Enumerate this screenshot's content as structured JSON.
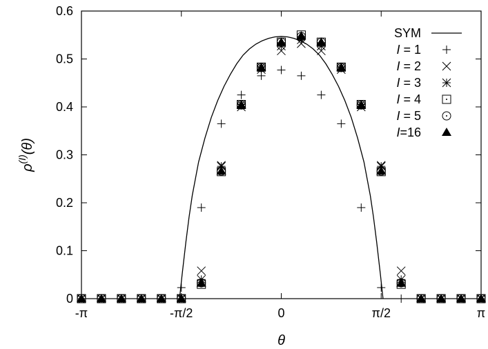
{
  "chart_data": {
    "type": "scatter",
    "title": "",
    "xlabel": "θ",
    "ylabel": {
      "base": "ρ",
      "sup": "(I)",
      "arg": "(θ)"
    },
    "xlim": [
      -3.14159,
      3.14159
    ],
    "ylim": [
      0,
      0.6
    ],
    "x_ticks": [
      {
        "value": -3.14159,
        "label": "-π"
      },
      {
        "value": -1.5708,
        "label": "-π/2"
      },
      {
        "value": 0,
        "label": "0"
      },
      {
        "value": 1.5708,
        "label": "π/2"
      },
      {
        "value": 3.14159,
        "label": "π"
      }
    ],
    "y_ticks": [
      {
        "value": 0,
        "label": "0"
      },
      {
        "value": 0.1,
        "label": "0.1"
      },
      {
        "value": 0.2,
        "label": "0.2"
      },
      {
        "value": 0.3,
        "label": "0.3"
      },
      {
        "value": 0.4,
        "label": "0.4"
      },
      {
        "value": 0.5,
        "label": "0.5"
      },
      {
        "value": 0.6,
        "label": "0.6"
      }
    ],
    "grid": false,
    "legend_position": "top-right",
    "x": [
      -3.1416,
      -2.8274,
      -2.5133,
      -2.1991,
      -1.885,
      -1.5708,
      -1.2566,
      -0.9425,
      -0.6283,
      -0.3142,
      0,
      0.3142,
      0.6283,
      0.9425,
      1.2566,
      1.5708,
      1.885,
      2.1991,
      2.5133,
      2.8274,
      3.1416
    ],
    "curve": {
      "name": "SYM",
      "style": "line",
      "x": [
        -1.6,
        -1.59,
        -1.58,
        -1.56,
        -1.54,
        -1.5,
        -1.45,
        -1.4,
        -1.3,
        -1.2,
        -1.1,
        -1.0,
        -0.9,
        -0.8,
        -0.7,
        -0.6,
        -0.5,
        -0.4,
        -0.3,
        -0.2,
        -0.1,
        0,
        0.1,
        0.2,
        0.3,
        0.4,
        0.5,
        0.6,
        0.7,
        0.8,
        0.9,
        1.0,
        1.1,
        1.2,
        1.3,
        1.4,
        1.45,
        1.5,
        1.54,
        1.56,
        1.58,
        1.59,
        1.6
      ],
      "y": [
        0.0,
        0.012,
        0.024,
        0.048,
        0.072,
        0.118,
        0.17,
        0.215,
        0.285,
        0.335,
        0.378,
        0.413,
        0.443,
        0.468,
        0.49,
        0.508,
        0.521,
        0.531,
        0.538,
        0.543,
        0.546,
        0.547,
        0.546,
        0.543,
        0.538,
        0.531,
        0.521,
        0.508,
        0.49,
        0.468,
        0.443,
        0.413,
        0.378,
        0.335,
        0.285,
        0.215,
        0.17,
        0.118,
        0.072,
        0.048,
        0.024,
        0.012,
        0.0
      ]
    },
    "series": [
      {
        "name": "I = 1",
        "legend_prefix": "I",
        "legend_suffix": " = 1",
        "marker": "plus",
        "values": [
          0,
          0,
          0,
          0,
          0,
          0.023,
          0.19,
          0.365,
          0.425,
          0.465,
          0.477,
          0.465,
          0.425,
          0.365,
          0.19,
          0.023,
          0,
          0,
          0,
          0,
          0
        ]
      },
      {
        "name": "I = 2",
        "legend_prefix": "I",
        "legend_suffix": " = 2",
        "marker": "cross",
        "values": [
          0,
          0,
          0,
          0,
          0,
          0,
          0.058,
          0.278,
          0.4,
          0.478,
          0.517,
          0.532,
          0.517,
          0.478,
          0.4,
          0.278,
          0.058,
          0,
          0,
          0,
          0
        ]
      },
      {
        "name": "I = 3",
        "legend_prefix": "I",
        "legend_suffix": " = 3",
        "marker": "star",
        "values": [
          0,
          0,
          0,
          0,
          0,
          0,
          0.04,
          0.276,
          0.405,
          0.483,
          0.527,
          0.54,
          0.527,
          0.483,
          0.405,
          0.276,
          0.04,
          0,
          0,
          0,
          0
        ]
      },
      {
        "name": "I = 4",
        "legend_prefix": "I",
        "legend_suffix": " = 4",
        "marker": "square",
        "values": [
          0,
          0,
          0,
          0,
          0,
          0,
          0.03,
          0.265,
          0.405,
          0.483,
          0.535,
          0.55,
          0.535,
          0.483,
          0.405,
          0.265,
          0.03,
          0,
          0,
          0,
          0
        ]
      },
      {
        "name": "I = 5",
        "legend_prefix": "I",
        "legend_suffix": " = 5",
        "marker": "circle",
        "values": [
          0,
          0,
          0,
          0,
          0,
          0,
          0.033,
          0.266,
          0.404,
          0.482,
          0.535,
          0.547,
          0.535,
          0.482,
          0.404,
          0.266,
          0.033,
          0,
          0,
          0,
          0
        ]
      },
      {
        "name": "I=16",
        "legend_prefix": "I",
        "legend_suffix": "=16",
        "marker": "triangle",
        "values": [
          0,
          0,
          0,
          0,
          0,
          0,
          0.032,
          0.266,
          0.404,
          0.482,
          0.535,
          0.548,
          0.535,
          0.482,
          0.404,
          0.266,
          0.032,
          0,
          0,
          0,
          0
        ]
      }
    ]
  }
}
